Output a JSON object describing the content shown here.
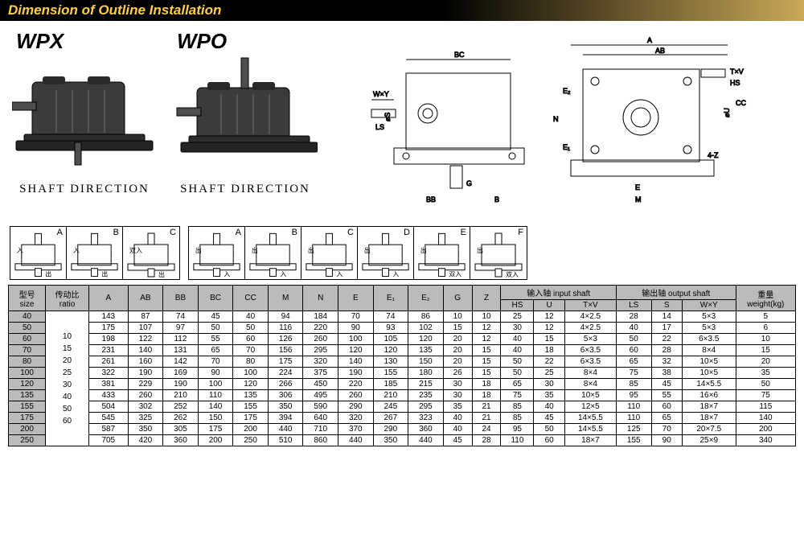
{
  "banner_title": "Dimension of Outline Installation",
  "products": {
    "wpx": {
      "label": "WPX",
      "caption": "SHAFT  DIRECTION"
    },
    "wpo": {
      "label": "WPO",
      "caption": "SHAFT  DIRECTION"
    }
  },
  "tech_labels": [
    "A",
    "AB",
    "BC",
    "T×V",
    "W×Y",
    "HS",
    "CC",
    "E₂",
    "N",
    "E₁",
    "LS",
    "G",
    "BB",
    "B",
    "E",
    "M",
    "4-Z",
    "S⌀",
    "U⌀"
  ],
  "variant_groups": [
    {
      "letters": [
        "A",
        "B",
        "C"
      ],
      "markers": [
        [
          "入",
          "出"
        ],
        [
          "入",
          "出"
        ],
        [
          "双入",
          "出"
        ]
      ]
    },
    {
      "letters": [
        "A",
        "B",
        "C",
        "D",
        "E",
        "F"
      ],
      "markers": [
        [
          "出",
          "入"
        ],
        [
          "出",
          "入"
        ],
        [
          "出",
          "入"
        ],
        [
          "出",
          "入"
        ],
        [
          "出",
          "双入"
        ],
        [
          "出",
          "双入"
        ]
      ]
    }
  ],
  "table": {
    "group_headers": {
      "input": "输入轴 input  shaft",
      "output": "输出轴 output shaft"
    },
    "columns": [
      "型号\nsize",
      "传动比\nratio",
      "A",
      "AB",
      "BB",
      "BC",
      "CC",
      "M",
      "N",
      "E",
      "E₁",
      "E₂",
      "G",
      "Z",
      "HS",
      "U",
      "T×V",
      "LS",
      "S",
      "W×Y",
      "重量\nweight(kg)"
    ],
    "ratio_values": "10\n15\n20\n25\n30\n40\n50\n60",
    "rows": [
      [
        "40",
        "143",
        "87",
        "74",
        "45",
        "40",
        "94",
        "184",
        "70",
        "74",
        "86",
        "10",
        "10",
        "25",
        "12",
        "4×2.5",
        "28",
        "14",
        "5×3",
        "5"
      ],
      [
        "50",
        "175",
        "107",
        "97",
        "50",
        "50",
        "116",
        "220",
        "90",
        "93",
        "102",
        "15",
        "12",
        "30",
        "12",
        "4×2.5",
        "40",
        "17",
        "5×3",
        "6"
      ],
      [
        "60",
        "198",
        "122",
        "112",
        "55",
        "60",
        "126",
        "260",
        "100",
        "105",
        "120",
        "20",
        "12",
        "40",
        "15",
        "5×3",
        "50",
        "22",
        "6×3.5",
        "10"
      ],
      [
        "70",
        "231",
        "140",
        "131",
        "65",
        "70",
        "156",
        "295",
        "120",
        "120",
        "135",
        "20",
        "15",
        "40",
        "18",
        "6×3.5",
        "60",
        "28",
        "8×4",
        "15"
      ],
      [
        "80",
        "261",
        "160",
        "142",
        "70",
        "80",
        "175",
        "320",
        "140",
        "130",
        "150",
        "20",
        "15",
        "50",
        "22",
        "6×3.5",
        "65",
        "32",
        "10×5",
        "20"
      ],
      [
        "100",
        "322",
        "190",
        "169",
        "90",
        "100",
        "224",
        "375",
        "190",
        "155",
        "180",
        "26",
        "15",
        "50",
        "25",
        "8×4",
        "75",
        "38",
        "10×5",
        "35"
      ],
      [
        "120",
        "381",
        "229",
        "190",
        "100",
        "120",
        "266",
        "450",
        "220",
        "185",
        "215",
        "30",
        "18",
        "65",
        "30",
        "8×4",
        "85",
        "45",
        "14×5.5",
        "50"
      ],
      [
        "135",
        "433",
        "260",
        "210",
        "110",
        "135",
        "306",
        "495",
        "260",
        "210",
        "235",
        "30",
        "18",
        "75",
        "35",
        "10×5",
        "95",
        "55",
        "16×6",
        "75"
      ],
      [
        "155",
        "504",
        "302",
        "252",
        "140",
        "155",
        "350",
        "590",
        "290",
        "245",
        "295",
        "35",
        "21",
        "85",
        "40",
        "12×5",
        "110",
        "60",
        "18×7",
        "115"
      ],
      [
        "175",
        "545",
        "325",
        "262",
        "150",
        "175",
        "394",
        "640",
        "320",
        "267",
        "323",
        "40",
        "21",
        "85",
        "45",
        "14×5.5",
        "110",
        "65",
        "18×7",
        "140"
      ],
      [
        "200",
        "587",
        "350",
        "305",
        "175",
        "200",
        "440",
        "710",
        "370",
        "290",
        "360",
        "40",
        "24",
        "95",
        "50",
        "14×5.5",
        "125",
        "70",
        "20×7.5",
        "200"
      ],
      [
        "250",
        "705",
        "420",
        "360",
        "200",
        "250",
        "510",
        "860",
        "440",
        "350",
        "440",
        "45",
        "28",
        "110",
        "60",
        "18×7",
        "155",
        "90",
        "25×9",
        "340"
      ]
    ]
  },
  "styling": {
    "banner_bg_start": "#000000",
    "banner_bg_end": "#c9a857",
    "banner_text": "#ffcf4a",
    "header_row_bg": "#bbbbbb",
    "border_color": "#000000",
    "body_font_size": 10
  }
}
